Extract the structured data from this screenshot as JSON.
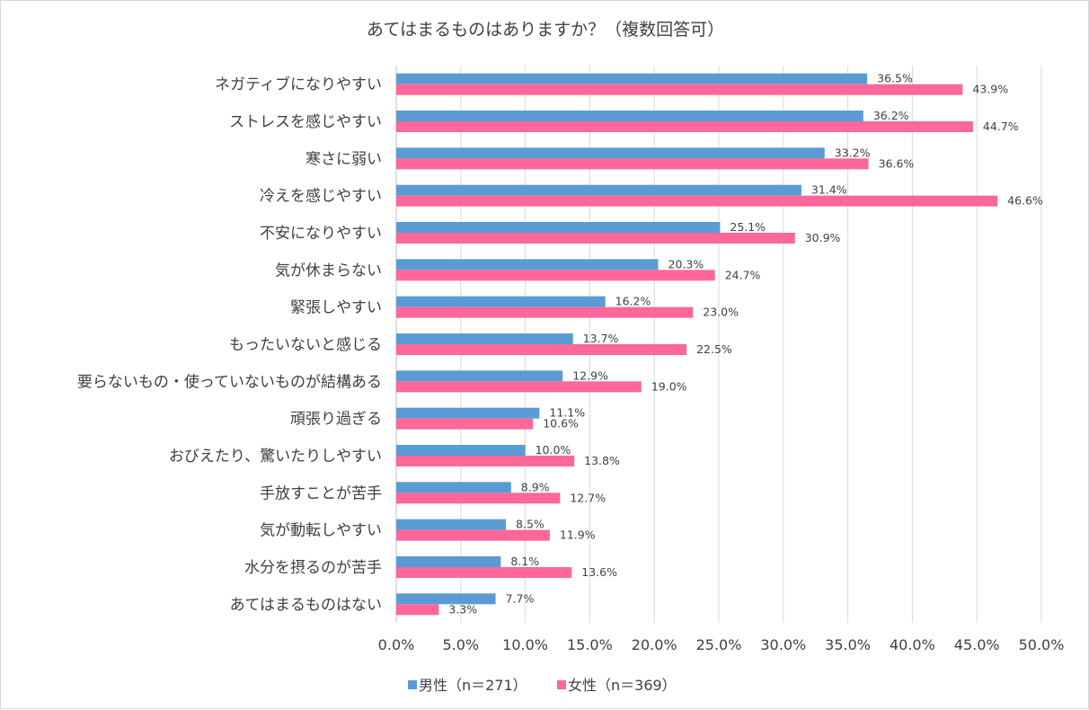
{
  "chart_data": {
    "type": "bar",
    "orientation": "horizontal",
    "title": "あてはまるものはありますか？（複数回答可）",
    "categories": [
      "ネガティブになりやすい",
      "ストレスを感じやすい",
      "寒さに弱い",
      "冷えを感じやすい",
      "不安になりやすい",
      "気が休まらない",
      "緊張しやすい",
      "もったいないと感じる",
      "要らないもの・使っていないものが結構ある",
      "頑張り過ぎる",
      "おびえたり、驚いたりしやすい",
      "手放すことが苦手",
      "気が動転しやすい",
      "水分を摂るのが苦手",
      "あてはまるものはない"
    ],
    "series": [
      {
        "name": "男性（n＝271）",
        "color": "#5b9bd5",
        "values": [
          36.5,
          36.2,
          33.2,
          31.4,
          25.1,
          20.3,
          16.2,
          13.7,
          12.9,
          11.1,
          10.0,
          8.9,
          8.5,
          8.1,
          7.7
        ],
        "labels": [
          "36.5%",
          "36.2%",
          "33.2%",
          "31.4%",
          "25.1%",
          "20.3%",
          "16.2%",
          "13.7%",
          "12.9%",
          "11.1%",
          "10.0%",
          "8.9%",
          "8.5%",
          "8.1%",
          "7.7%"
        ]
      },
      {
        "name": "女性（n＝369）",
        "color": "#ff6699",
        "values": [
          43.9,
          44.7,
          36.6,
          46.6,
          30.9,
          24.7,
          23.0,
          22.5,
          19.0,
          10.6,
          13.8,
          12.7,
          11.9,
          13.6,
          3.3
        ],
        "labels": [
          "43.9%",
          "44.7%",
          "36.6%",
          "46.6%",
          "30.9%",
          "24.7%",
          "23.0%",
          "22.5%",
          "19.0%",
          "10.6%",
          "13.8%",
          "12.7%",
          "11.9%",
          "13.6%",
          "3.3%"
        ]
      }
    ],
    "xlim": [
      0,
      50
    ],
    "x_ticks": [
      0,
      5,
      10,
      15,
      20,
      25,
      30,
      35,
      40,
      45,
      50
    ],
    "x_tick_labels": [
      "0.0%",
      "5.0%",
      "10.0%",
      "15.0%",
      "20.0%",
      "25.0%",
      "30.0%",
      "35.0%",
      "40.0%",
      "45.0%",
      "50.0%"
    ],
    "grid": true,
    "legend": "bottom"
  }
}
